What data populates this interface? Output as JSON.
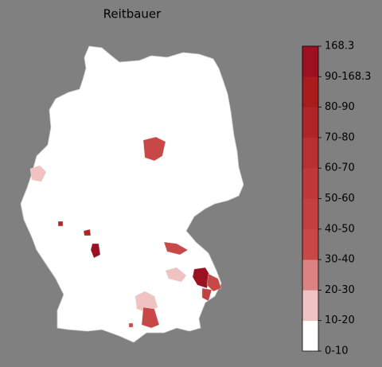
{
  "title": "Reitbauer",
  "colorbar": {
    "labels": [
      "0-10",
      "10-20",
      "20-30",
      "30-40",
      "40-50",
      "50-60",
      "60-70",
      "70-80",
      "80-90",
      "90-168.3",
      "168.3"
    ],
    "colors": [
      "#ffffff",
      "#f0c2c2",
      "#dc8282",
      "#c84848",
      "#c44040",
      "#c03838",
      "#b83030",
      "#b02626",
      "#a81c1c",
      "#9c1022"
    ]
  }
}
